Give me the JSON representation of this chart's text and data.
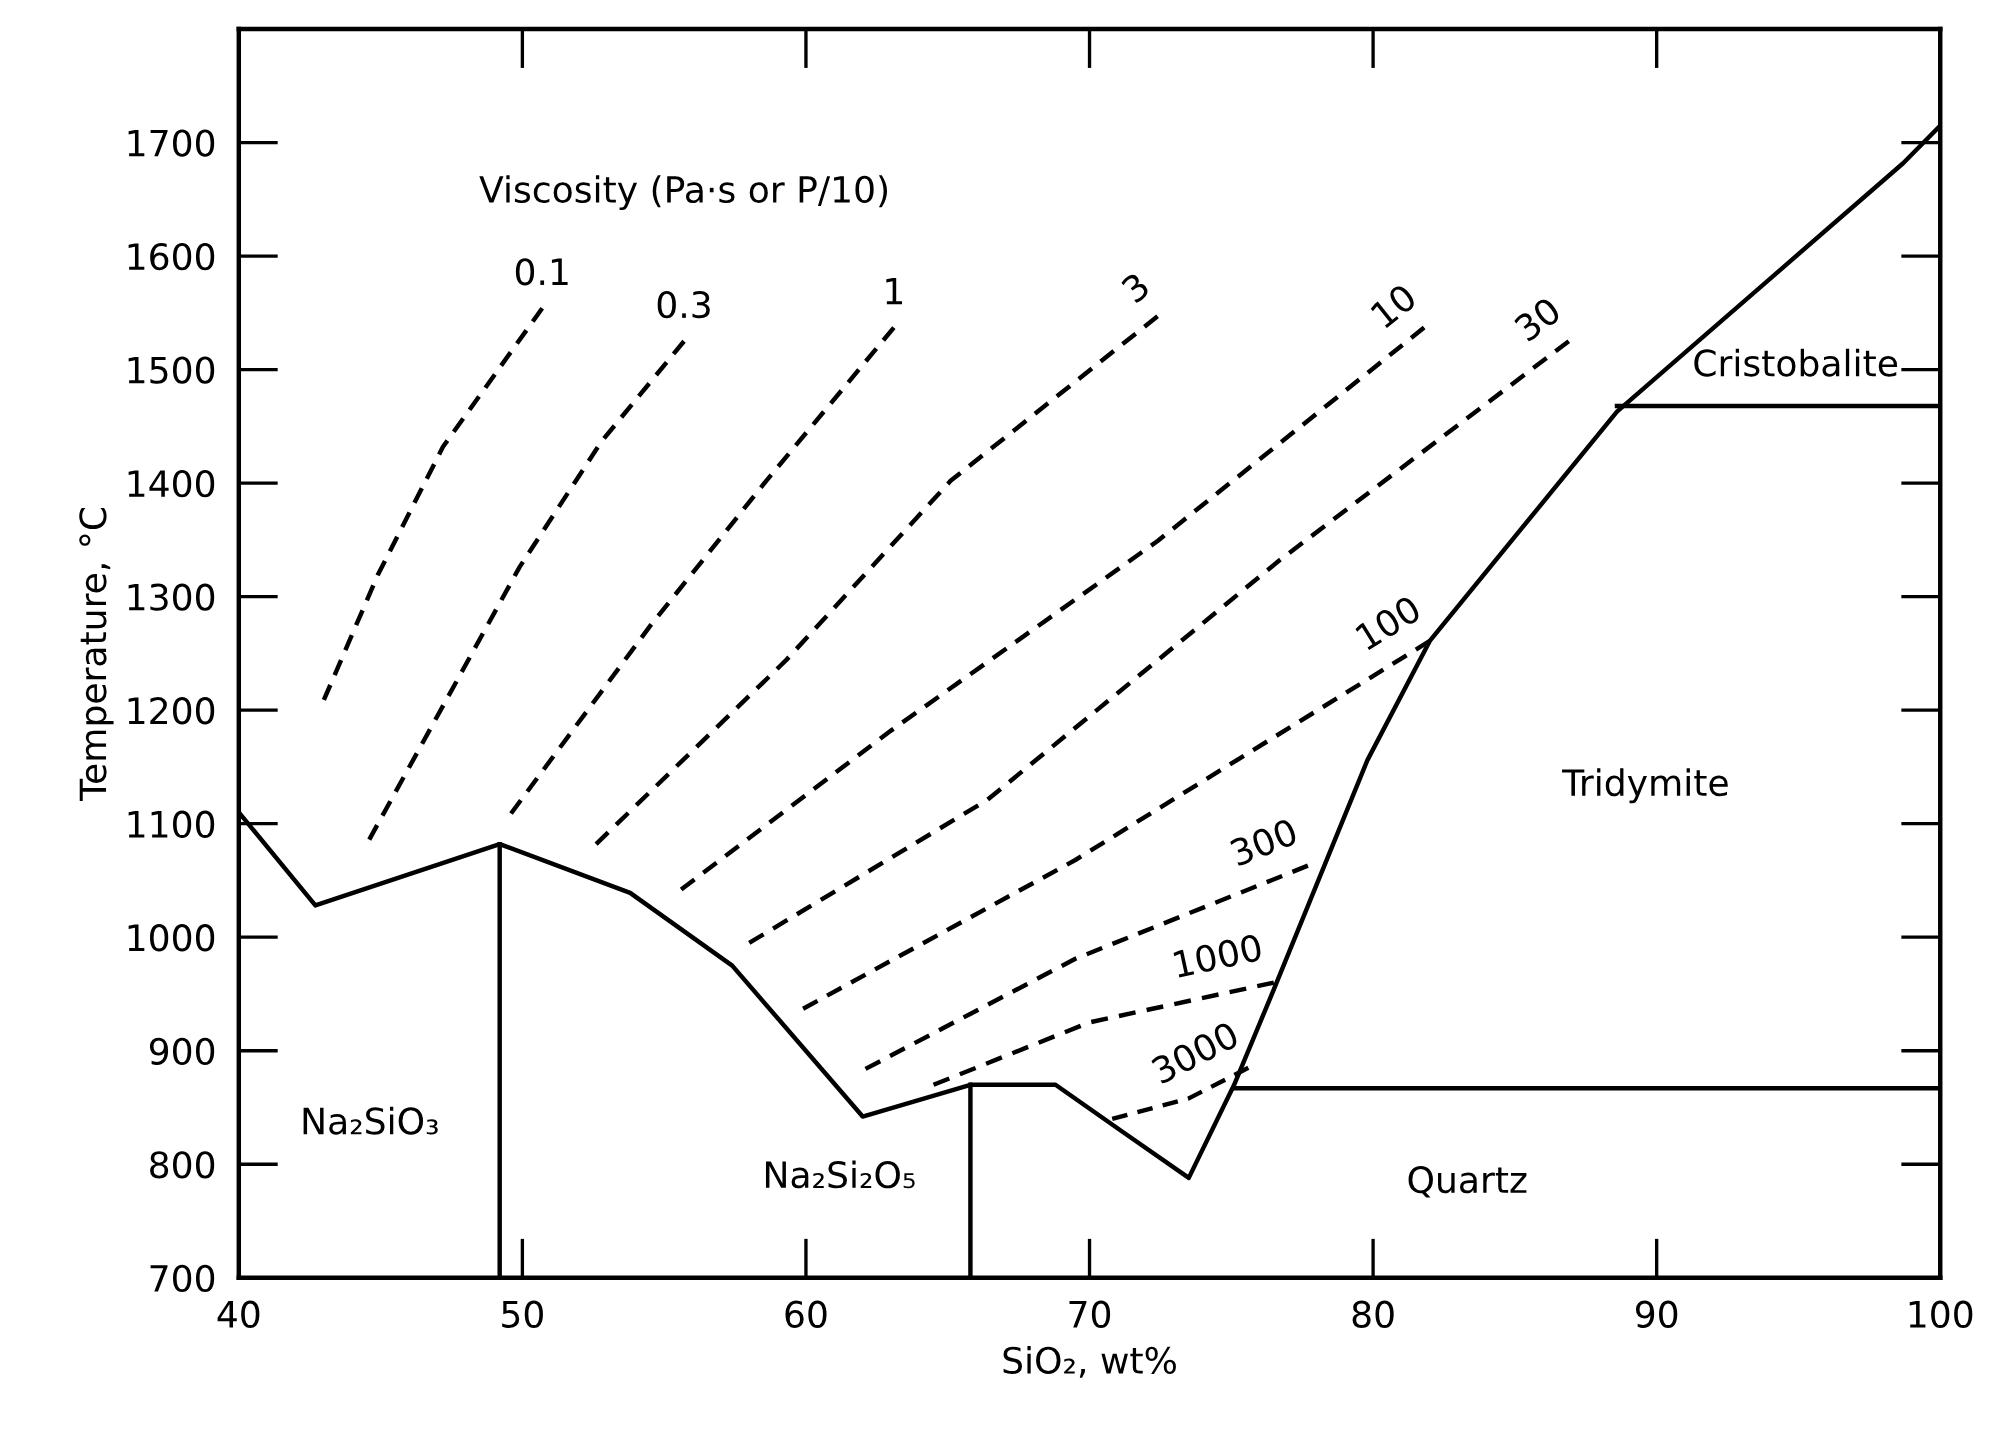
{
  "chart_data": {
    "type": "line",
    "xlabel": "SiO₂, wt%",
    "ylabel": "Temperature, °C",
    "xlim": [
      40,
      100
    ],
    "ylim": [
      700,
      1800
    ],
    "xticks": [
      40,
      50,
      60,
      70,
      80,
      90,
      100
    ],
    "yticks": [
      700,
      800,
      900,
      1000,
      1100,
      1200,
      1300,
      1400,
      1500,
      1600,
      1700
    ],
    "grid": false,
    "marker": "none",
    "series": [
      {
        "color": "#000000",
        "line_style": "solid",
        "x": [
          40,
          42.7,
          49.2,
          53.8,
          57.4,
          62.0,
          65.8,
          68.8,
          71.2,
          73.5,
          75.1,
          76.5,
          79.8,
          82.0,
          88.6,
          98.7,
          100
        ],
        "values": [
          1110,
          1028,
          1082,
          1039,
          975,
          842,
          870,
          870,
          828,
          788,
          870,
          954,
          1156,
          1261,
          1463,
          1682,
          1715
        ]
      },
      {
        "color": "#000000",
        "line_style": "solid",
        "x": [
          49.2,
          49.2
        ],
        "values": [
          700,
          1082
        ]
      },
      {
        "color": "#000000",
        "line_style": "solid",
        "x": [
          65.8,
          65.8
        ],
        "values": [
          700,
          870
        ]
      },
      {
        "color": "#000000",
        "line_style": "solid",
        "x": [
          75.1,
          100
        ],
        "values": [
          867,
          867
        ]
      },
      {
        "color": "#000000",
        "line_style": "solid",
        "x": [
          88.6,
          100
        ],
        "values": [
          1468,
          1468
        ]
      },
      {
        "name": "0.1",
        "color": "#000000",
        "line_style": "dashed",
        "x": [
          43.0,
          44.9,
          47.2,
          50.7
        ],
        "values": [
          1209,
          1319,
          1432,
          1554
        ]
      },
      {
        "name": "0.3",
        "color": "#000000",
        "line_style": "dashed",
        "x": [
          44.6,
          49.9,
          52.8,
          55.7
        ],
        "values": [
          1086,
          1326,
          1437,
          1525
        ]
      },
      {
        "name": "1",
        "color": "#000000",
        "line_style": "dashed",
        "x": [
          49.6,
          54.5,
          58.6,
          63.1
        ],
        "values": [
          1109,
          1274,
          1402,
          1537
        ]
      },
      {
        "name": "3",
        "color": "#000000",
        "line_style": "dashed",
        "x": [
          52.6,
          59.3,
          65.1,
          72.4
        ],
        "values": [
          1082,
          1244,
          1402,
          1547
        ]
      },
      {
        "name": "10",
        "color": "#000000",
        "line_style": "dashed",
        "x": [
          55.6,
          63.0,
          72.4,
          81.8
        ],
        "values": [
          1042,
          1182,
          1349,
          1537
        ]
      },
      {
        "name": "30",
        "color": "#000000",
        "line_style": "dashed",
        "x": [
          58.0,
          66.4,
          76.7,
          86.9
        ],
        "values": [
          995,
          1121,
          1332,
          1525
        ]
      },
      {
        "name": "100",
        "color": "#000000",
        "line_style": "dashed",
        "x": [
          59.9,
          69.5,
          82.0
        ],
        "values": [
          937,
          1068,
          1261
        ]
      },
      {
        "name": "300",
        "color": "#000000",
        "line_style": "dashed",
        "x": [
          62.1,
          69.5,
          77.7
        ],
        "values": [
          884,
          981,
          1063
        ]
      },
      {
        "name": "1000",
        "color": "#000000",
        "line_style": "dashed",
        "x": [
          64.5,
          70.0,
          76.5
        ],
        "values": [
          870,
          925,
          960
        ]
      },
      {
        "name": "3000",
        "color": "#000000",
        "line_style": "dashed",
        "x": [
          70.8,
          73.5,
          75.6
        ],
        "values": [
          840,
          858,
          885
        ]
      }
    ],
    "annotations": [
      "Viscosity (Pa·s or P/10)",
      "Cristobalite",
      "Tridymite",
      "Quartz",
      "Na₂SiO₃",
      "Na₂Si₂O₅"
    ]
  }
}
